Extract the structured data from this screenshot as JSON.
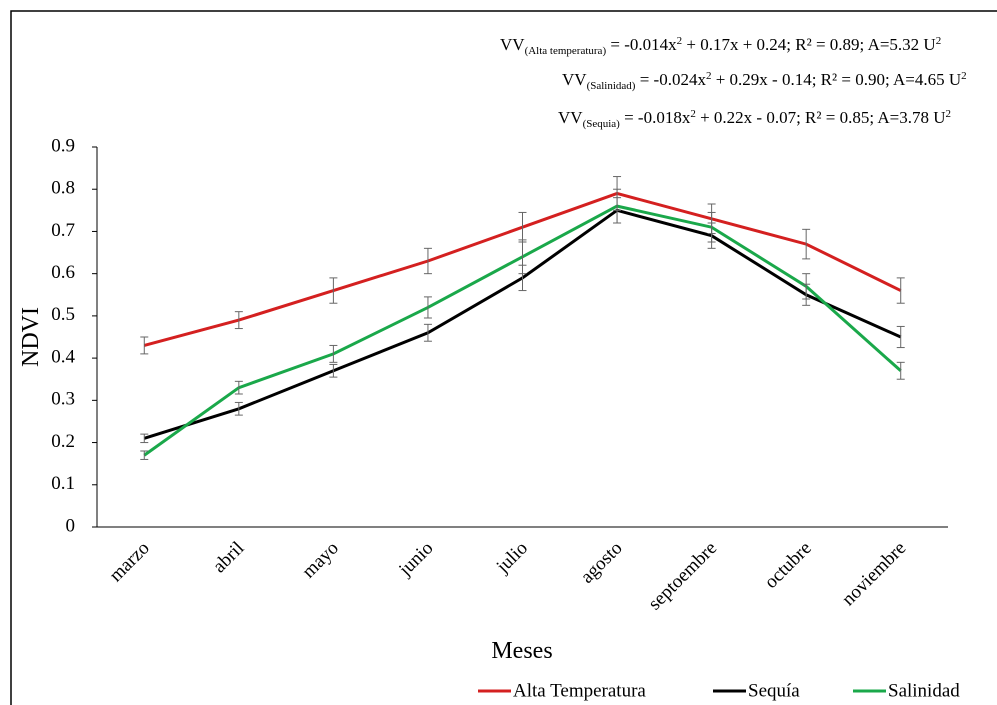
{
  "chart_data": {
    "type": "line",
    "y_label": "NDVI",
    "x_label": "Meses",
    "categories": [
      "marzo",
      "abril",
      "mayo",
      "junio",
      "julio",
      "agosto",
      "septoembre",
      "octubre",
      "noviembre"
    ],
    "series": [
      {
        "name": "Alta Temperatura",
        "color": "#d42020",
        "values": [
          0.43,
          0.49,
          0.56,
          0.63,
          0.71,
          0.79,
          0.73,
          0.67,
          0.56
        ],
        "errors": [
          0.02,
          0.02,
          0.03,
          0.03,
          0.035,
          0.04,
          0.035,
          0.035,
          0.03
        ]
      },
      {
        "name": "Sequía",
        "color": "#000000",
        "values": [
          0.21,
          0.28,
          0.37,
          0.46,
          0.59,
          0.75,
          0.69,
          0.55,
          0.45
        ],
        "errors": [
          0.01,
          0.015,
          0.015,
          0.02,
          0.03,
          0.03,
          0.03,
          0.025,
          0.025
        ]
      },
      {
        "name": "Salinidad",
        "color": "#1aa84a",
        "values": [
          0.17,
          0.33,
          0.41,
          0.52,
          0.64,
          0.76,
          0.71,
          0.57,
          0.37
        ],
        "errors": [
          0.01,
          0.015,
          0.02,
          0.025,
          0.04,
          0.04,
          0.035,
          0.03,
          0.02
        ]
      }
    ],
    "ylim": [
      0,
      0.9
    ],
    "yticks": [
      0,
      0.1,
      0.2,
      0.3,
      0.4,
      0.5,
      0.6,
      0.7,
      0.8,
      0.9
    ],
    "annotations": [
      [
        "VV",
        "(Alta  temperatura)",
        " = -0.014x",
        "2",
        " + 0.17x + 0.24; R² = 0.89; A=5.32 U",
        "2"
      ],
      [
        "VV",
        "(Salinidad)",
        " = -0.024x",
        "2",
        " + 0.29x - 0.14; R² = 0.90; A=4.65 U",
        "2"
      ],
      [
        "VV",
        "(Sequia)",
        " = -0.018x",
        "2",
        " + 0.22x - 0.07; R² = 0.85; A=3.78 U",
        "2"
      ]
    ]
  }
}
